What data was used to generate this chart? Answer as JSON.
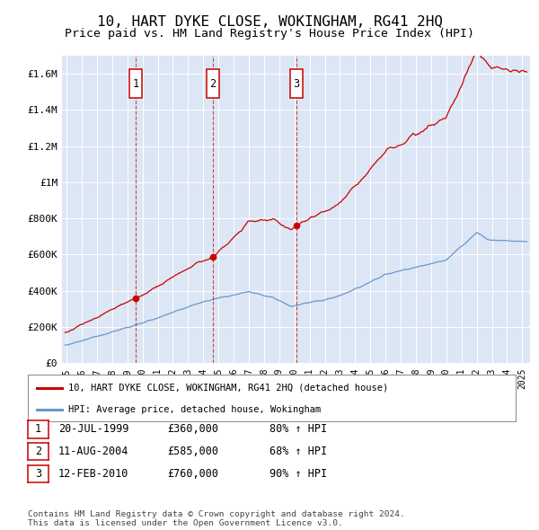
{
  "title": "10, HART DYKE CLOSE, WOKINGHAM, RG41 2HQ",
  "subtitle": "Price paid vs. HM Land Registry's House Price Index (HPI)",
  "title_fontsize": 11.5,
  "subtitle_fontsize": 9.5,
  "background_color": "#ffffff",
  "plot_bg_color": "#dce6f5",
  "grid_color": "#ffffff",
  "ylim": [
    0,
    1700000
  ],
  "yticks": [
    0,
    200000,
    400000,
    600000,
    800000,
    1000000,
    1200000,
    1400000,
    1600000
  ],
  "ytick_labels": [
    "£0",
    "£200K",
    "£400K",
    "£600K",
    "£800K",
    "£1M",
    "£1.2M",
    "£1.4M",
    "£1.6M"
  ],
  "xlim_start": 1994.7,
  "xlim_end": 2025.5,
  "purchases": [
    {
      "num": 1,
      "date": "20-JUL-1999",
      "price": 360000,
      "pct": "80%",
      "year": 1999.55
    },
    {
      "num": 2,
      "date": "11-AUG-2004",
      "price": 585000,
      "pct": "68%",
      "year": 2004.62
    },
    {
      "num": 3,
      "date": "12-FEB-2010",
      "price": 760000,
      "pct": "90%",
      "year": 2010.12
    }
  ],
  "legend_line1": "10, HART DYKE CLOSE, WOKINGHAM, RG41 2HQ (detached house)",
  "legend_line2": "HPI: Average price, detached house, Wokingham",
  "footer": "Contains HM Land Registry data © Crown copyright and database right 2024.\nThis data is licensed under the Open Government Licence v3.0.",
  "red_color": "#cc0000",
  "blue_color": "#6699cc",
  "dashed_color": "#cc0000"
}
